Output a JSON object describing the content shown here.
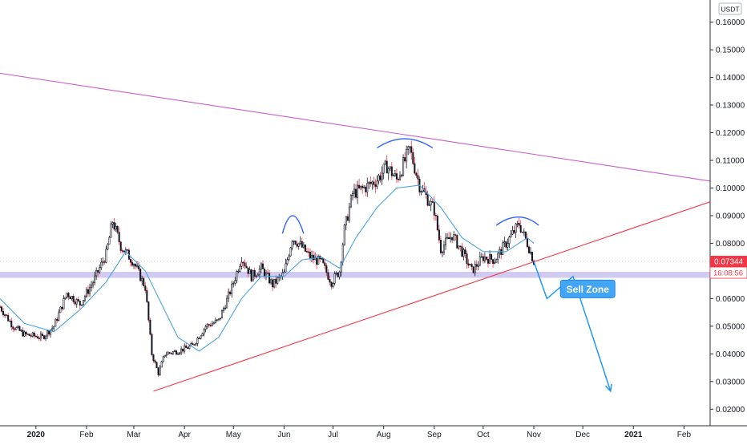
{
  "chart_data": {
    "type": "candlestick",
    "currency": "USDT",
    "price_axis": {
      "range": [
        0.014,
        0.168
      ],
      "ticks": [
        "0.16000",
        "0.15000",
        "0.14000",
        "0.13000",
        "0.12000",
        "0.11000",
        "0.10000",
        "0.09000",
        "0.08000",
        "0.07000",
        "0.06000",
        "0.05000",
        "0.04000",
        "0.03000",
        "0.02000"
      ]
    },
    "time_axis": {
      "range": [
        "2019-12-10",
        "2021-02-17"
      ],
      "labels": [
        {
          "text": "2020",
          "date": "2020-01-01",
          "bold": true
        },
        {
          "text": "Feb",
          "date": "2020-02-01"
        },
        {
          "text": "Mar",
          "date": "2020-03-01"
        },
        {
          "text": "Apr",
          "date": "2020-04-01"
        },
        {
          "text": "May",
          "date": "2020-05-01"
        },
        {
          "text": "Jun",
          "date": "2020-06-01"
        },
        {
          "text": "Jul",
          "date": "2020-07-01"
        },
        {
          "text": "Aug",
          "date": "2020-08-01"
        },
        {
          "text": "Sep",
          "date": "2020-09-01"
        },
        {
          "text": "Oct",
          "date": "2020-10-01"
        },
        {
          "text": "Nov",
          "date": "2020-11-01"
        },
        {
          "text": "Dec",
          "date": "2020-12-01"
        },
        {
          "text": "2021",
          "date": "2021-01-01",
          "bold": true
        },
        {
          "text": "Feb",
          "date": "2021-02-01"
        }
      ]
    },
    "close_path": [
      [
        "2019-12-10",
        0.057
      ],
      [
        "2019-12-18",
        0.05
      ],
      [
        "2019-12-25",
        0.047
      ],
      [
        "2020-01-05",
        0.046
      ],
      [
        "2020-01-12",
        0.05
      ],
      [
        "2020-01-20",
        0.062
      ],
      [
        "2020-01-28",
        0.058
      ],
      [
        "2020-02-05",
        0.066
      ],
      [
        "2020-02-13",
        0.076
      ],
      [
        "2020-02-17",
        0.088
      ],
      [
        "2020-02-22",
        0.079
      ],
      [
        "2020-03-01",
        0.073
      ],
      [
        "2020-03-08",
        0.064
      ],
      [
        "2020-03-12",
        0.04
      ],
      [
        "2020-03-16",
        0.033
      ],
      [
        "2020-03-20",
        0.04
      ],
      [
        "2020-03-28",
        0.041
      ],
      [
        "2020-04-06",
        0.043
      ],
      [
        "2020-04-14",
        0.05
      ],
      [
        "2020-04-22",
        0.052
      ],
      [
        "2020-04-30",
        0.064
      ],
      [
        "2020-05-06",
        0.075
      ],
      [
        "2020-05-12",
        0.068
      ],
      [
        "2020-05-18",
        0.071
      ],
      [
        "2020-05-25",
        0.065
      ],
      [
        "2020-06-01",
        0.069
      ],
      [
        "2020-06-06",
        0.082
      ],
      [
        "2020-06-10",
        0.08
      ],
      [
        "2020-06-17",
        0.075
      ],
      [
        "2020-06-24",
        0.073
      ],
      [
        "2020-06-30",
        0.066
      ],
      [
        "2020-07-05",
        0.07
      ],
      [
        "2020-07-08",
        0.085
      ],
      [
        "2020-07-13",
        0.098
      ],
      [
        "2020-07-20",
        0.1
      ],
      [
        "2020-07-28",
        0.103
      ],
      [
        "2020-08-03",
        0.108
      ],
      [
        "2020-08-09",
        0.103
      ],
      [
        "2020-08-17",
        0.114
      ],
      [
        "2020-08-23",
        0.101
      ],
      [
        "2020-09-01",
        0.092
      ],
      [
        "2020-09-05",
        0.078
      ],
      [
        "2020-09-12",
        0.083
      ],
      [
        "2020-09-18",
        0.077
      ],
      [
        "2020-09-24",
        0.07
      ],
      [
        "2020-10-01",
        0.075
      ],
      [
        "2020-10-08",
        0.074
      ],
      [
        "2020-10-15",
        0.08
      ],
      [
        "2020-10-23",
        0.087
      ],
      [
        "2020-10-28",
        0.08
      ],
      [
        "2020-11-01",
        0.0734
      ]
    ],
    "ma_path": [
      [
        "2019-12-10",
        0.06
      ],
      [
        "2019-12-25",
        0.051
      ],
      [
        "2020-01-12",
        0.048
      ],
      [
        "2020-01-28",
        0.056
      ],
      [
        "2020-02-13",
        0.066
      ],
      [
        "2020-02-25",
        0.077
      ],
      [
        "2020-03-08",
        0.07
      ],
      [
        "2020-03-18",
        0.058
      ],
      [
        "2020-03-28",
        0.046
      ],
      [
        "2020-04-10",
        0.041
      ],
      [
        "2020-04-22",
        0.046
      ],
      [
        "2020-05-06",
        0.06
      ],
      [
        "2020-05-18",
        0.068
      ],
      [
        "2020-06-01",
        0.068
      ],
      [
        "2020-06-12",
        0.074
      ],
      [
        "2020-06-24",
        0.075
      ],
      [
        "2020-07-05",
        0.071
      ],
      [
        "2020-07-15",
        0.082
      ],
      [
        "2020-07-28",
        0.093
      ],
      [
        "2020-08-09",
        0.1
      ],
      [
        "2020-08-23",
        0.101
      ],
      [
        "2020-09-05",
        0.093
      ],
      [
        "2020-09-18",
        0.082
      ],
      [
        "2020-10-01",
        0.077
      ],
      [
        "2020-10-15",
        0.077
      ],
      [
        "2020-10-28",
        0.082
      ],
      [
        "2020-11-01",
        0.08
      ]
    ],
    "trendlines": [
      {
        "from": [
          "2019-12-10",
          0.1415
        ],
        "to": [
          "2021-02-17",
          0.1025
        ]
      },
      {
        "from": [
          "2020-03-13",
          0.0265
        ],
        "to": [
          "2021-02-17",
          0.095
        ]
      }
    ],
    "support_zone": [
      0.0675,
      0.0697
    ],
    "pattern_arcs": [
      {
        "from": [
          "2020-05-31",
          0.0835
        ],
        "peak": [
          "2020-06-06",
          0.09
        ],
        "to": [
          "2020-06-13",
          0.0835
        ]
      },
      {
        "from": [
          "2020-07-28",
          0.1145
        ],
        "peak": [
          "2020-08-14",
          0.1178
        ],
        "to": [
          "2020-08-31",
          0.1145
        ]
      },
      {
        "from": [
          "2020-10-09",
          0.0865
        ],
        "peak": [
          "2020-10-23",
          0.0895
        ],
        "to": [
          "2020-11-04",
          0.0865
        ]
      }
    ],
    "projection_path": [
      [
        "2020-11-01",
        0.0734
      ],
      [
        "2020-11-09",
        0.06
      ],
      [
        "2020-11-25",
        0.068
      ],
      [
        "2020-12-18",
        0.0265
      ]
    ],
    "annotation": {
      "text": "Sell Zone",
      "anchor": [
        "2020-12-04",
        0.0635
      ]
    },
    "last_price": {
      "value": 0.07344,
      "label": "0.07344",
      "countdown": "16:08:56"
    }
  }
}
